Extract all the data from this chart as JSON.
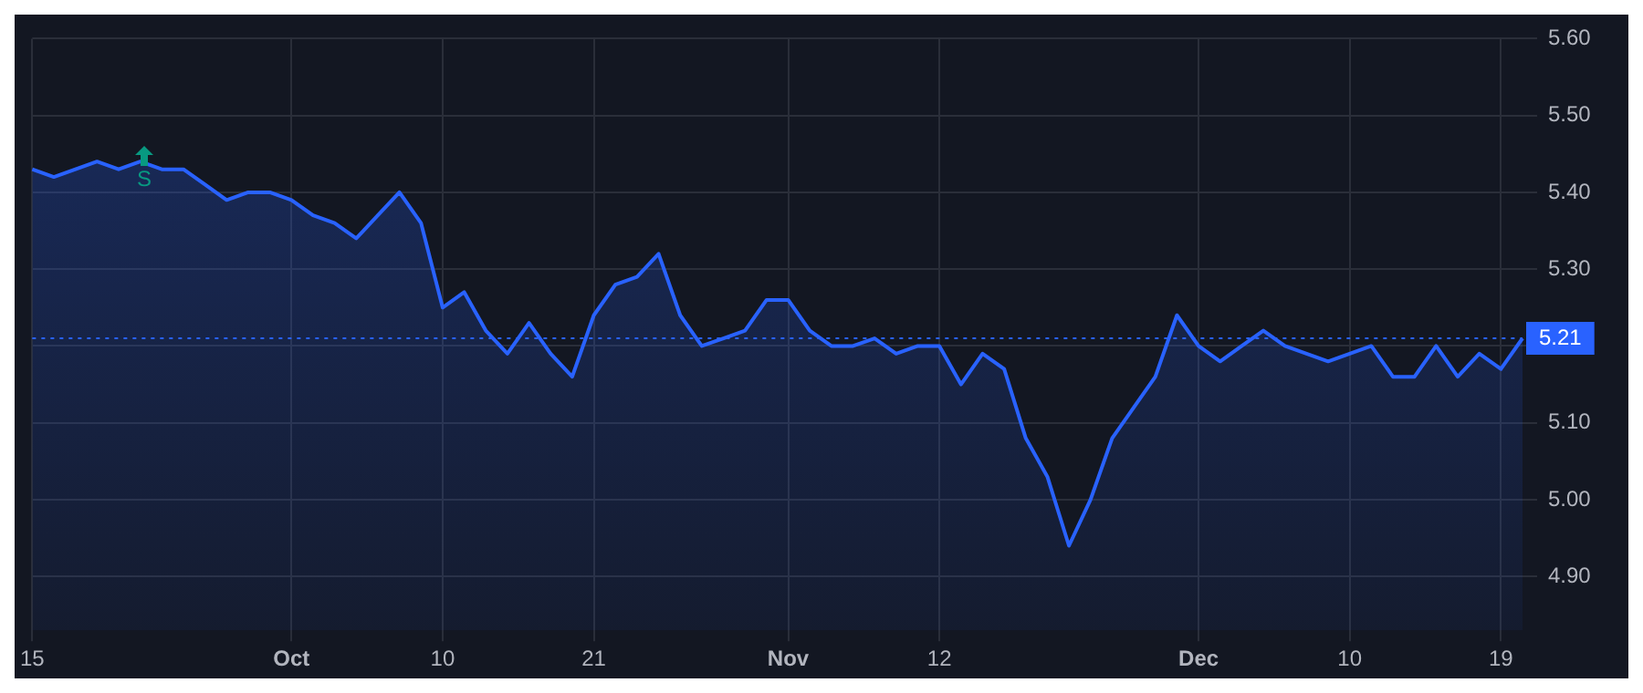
{
  "chart_data": {
    "type": "area",
    "categories": [
      "15",
      null,
      null,
      null,
      null,
      null,
      null,
      null,
      null,
      null,
      null,
      null,
      "Oct",
      null,
      null,
      null,
      null,
      null,
      null,
      "10",
      null,
      null,
      null,
      null,
      null,
      null,
      "21",
      null,
      null,
      null,
      null,
      null,
      null,
      null,
      null,
      "Nov",
      null,
      null,
      null,
      null,
      null,
      null,
      "12",
      null,
      null,
      null,
      null,
      null,
      null,
      null,
      null,
      null,
      null,
      null,
      "Dec",
      null,
      null,
      null,
      null,
      null,
      null,
      "10",
      null,
      null,
      null,
      null,
      null,
      null,
      "19",
      null
    ],
    "series": [
      {
        "color": "#2962ff",
        "values": [
          5.43,
          5.42,
          5.43,
          5.44,
          5.43,
          5.44,
          5.43,
          5.43,
          5.41,
          5.39,
          5.4,
          5.4,
          5.39,
          5.37,
          5.36,
          5.34,
          5.37,
          5.4,
          5.36,
          5.25,
          5.27,
          5.22,
          5.19,
          5.23,
          5.19,
          5.16,
          5.24,
          5.28,
          5.29,
          5.32,
          5.24,
          5.2,
          5.21,
          5.22,
          5.26,
          5.26,
          5.22,
          5.2,
          5.2,
          5.21,
          5.19,
          5.2,
          5.2,
          5.15,
          5.19,
          5.17,
          5.08,
          5.03,
          4.94,
          5.0,
          5.08,
          5.12,
          5.16,
          5.24,
          5.2,
          5.18,
          5.2,
          5.22,
          5.2,
          5.19,
          5.18,
          5.19,
          5.2,
          5.16,
          5.16,
          5.2,
          5.16,
          5.19,
          5.17,
          5.21
        ]
      }
    ],
    "ylim": [
      4.83,
      5.6
    ],
    "yticks": [
      {
        "value": 4.9,
        "label": "4.90"
      },
      {
        "value": 5.0,
        "label": "5.00"
      },
      {
        "value": 5.1,
        "label": "5.10"
      },
      {
        "value": 5.2,
        "label": null
      },
      {
        "value": 5.3,
        "label": "5.30"
      },
      {
        "value": 5.4,
        "label": "5.40"
      },
      {
        "value": 5.5,
        "label": "5.50"
      },
      {
        "value": 5.6,
        "label": "5.60"
      }
    ],
    "ref_lines": [
      {
        "axis": "y",
        "value": 5.21,
        "label": "5.21",
        "color": "#2962ff",
        "line_style": "dotted"
      }
    ],
    "annotations": [
      "S"
    ],
    "grid": true,
    "legend": false
  }
}
